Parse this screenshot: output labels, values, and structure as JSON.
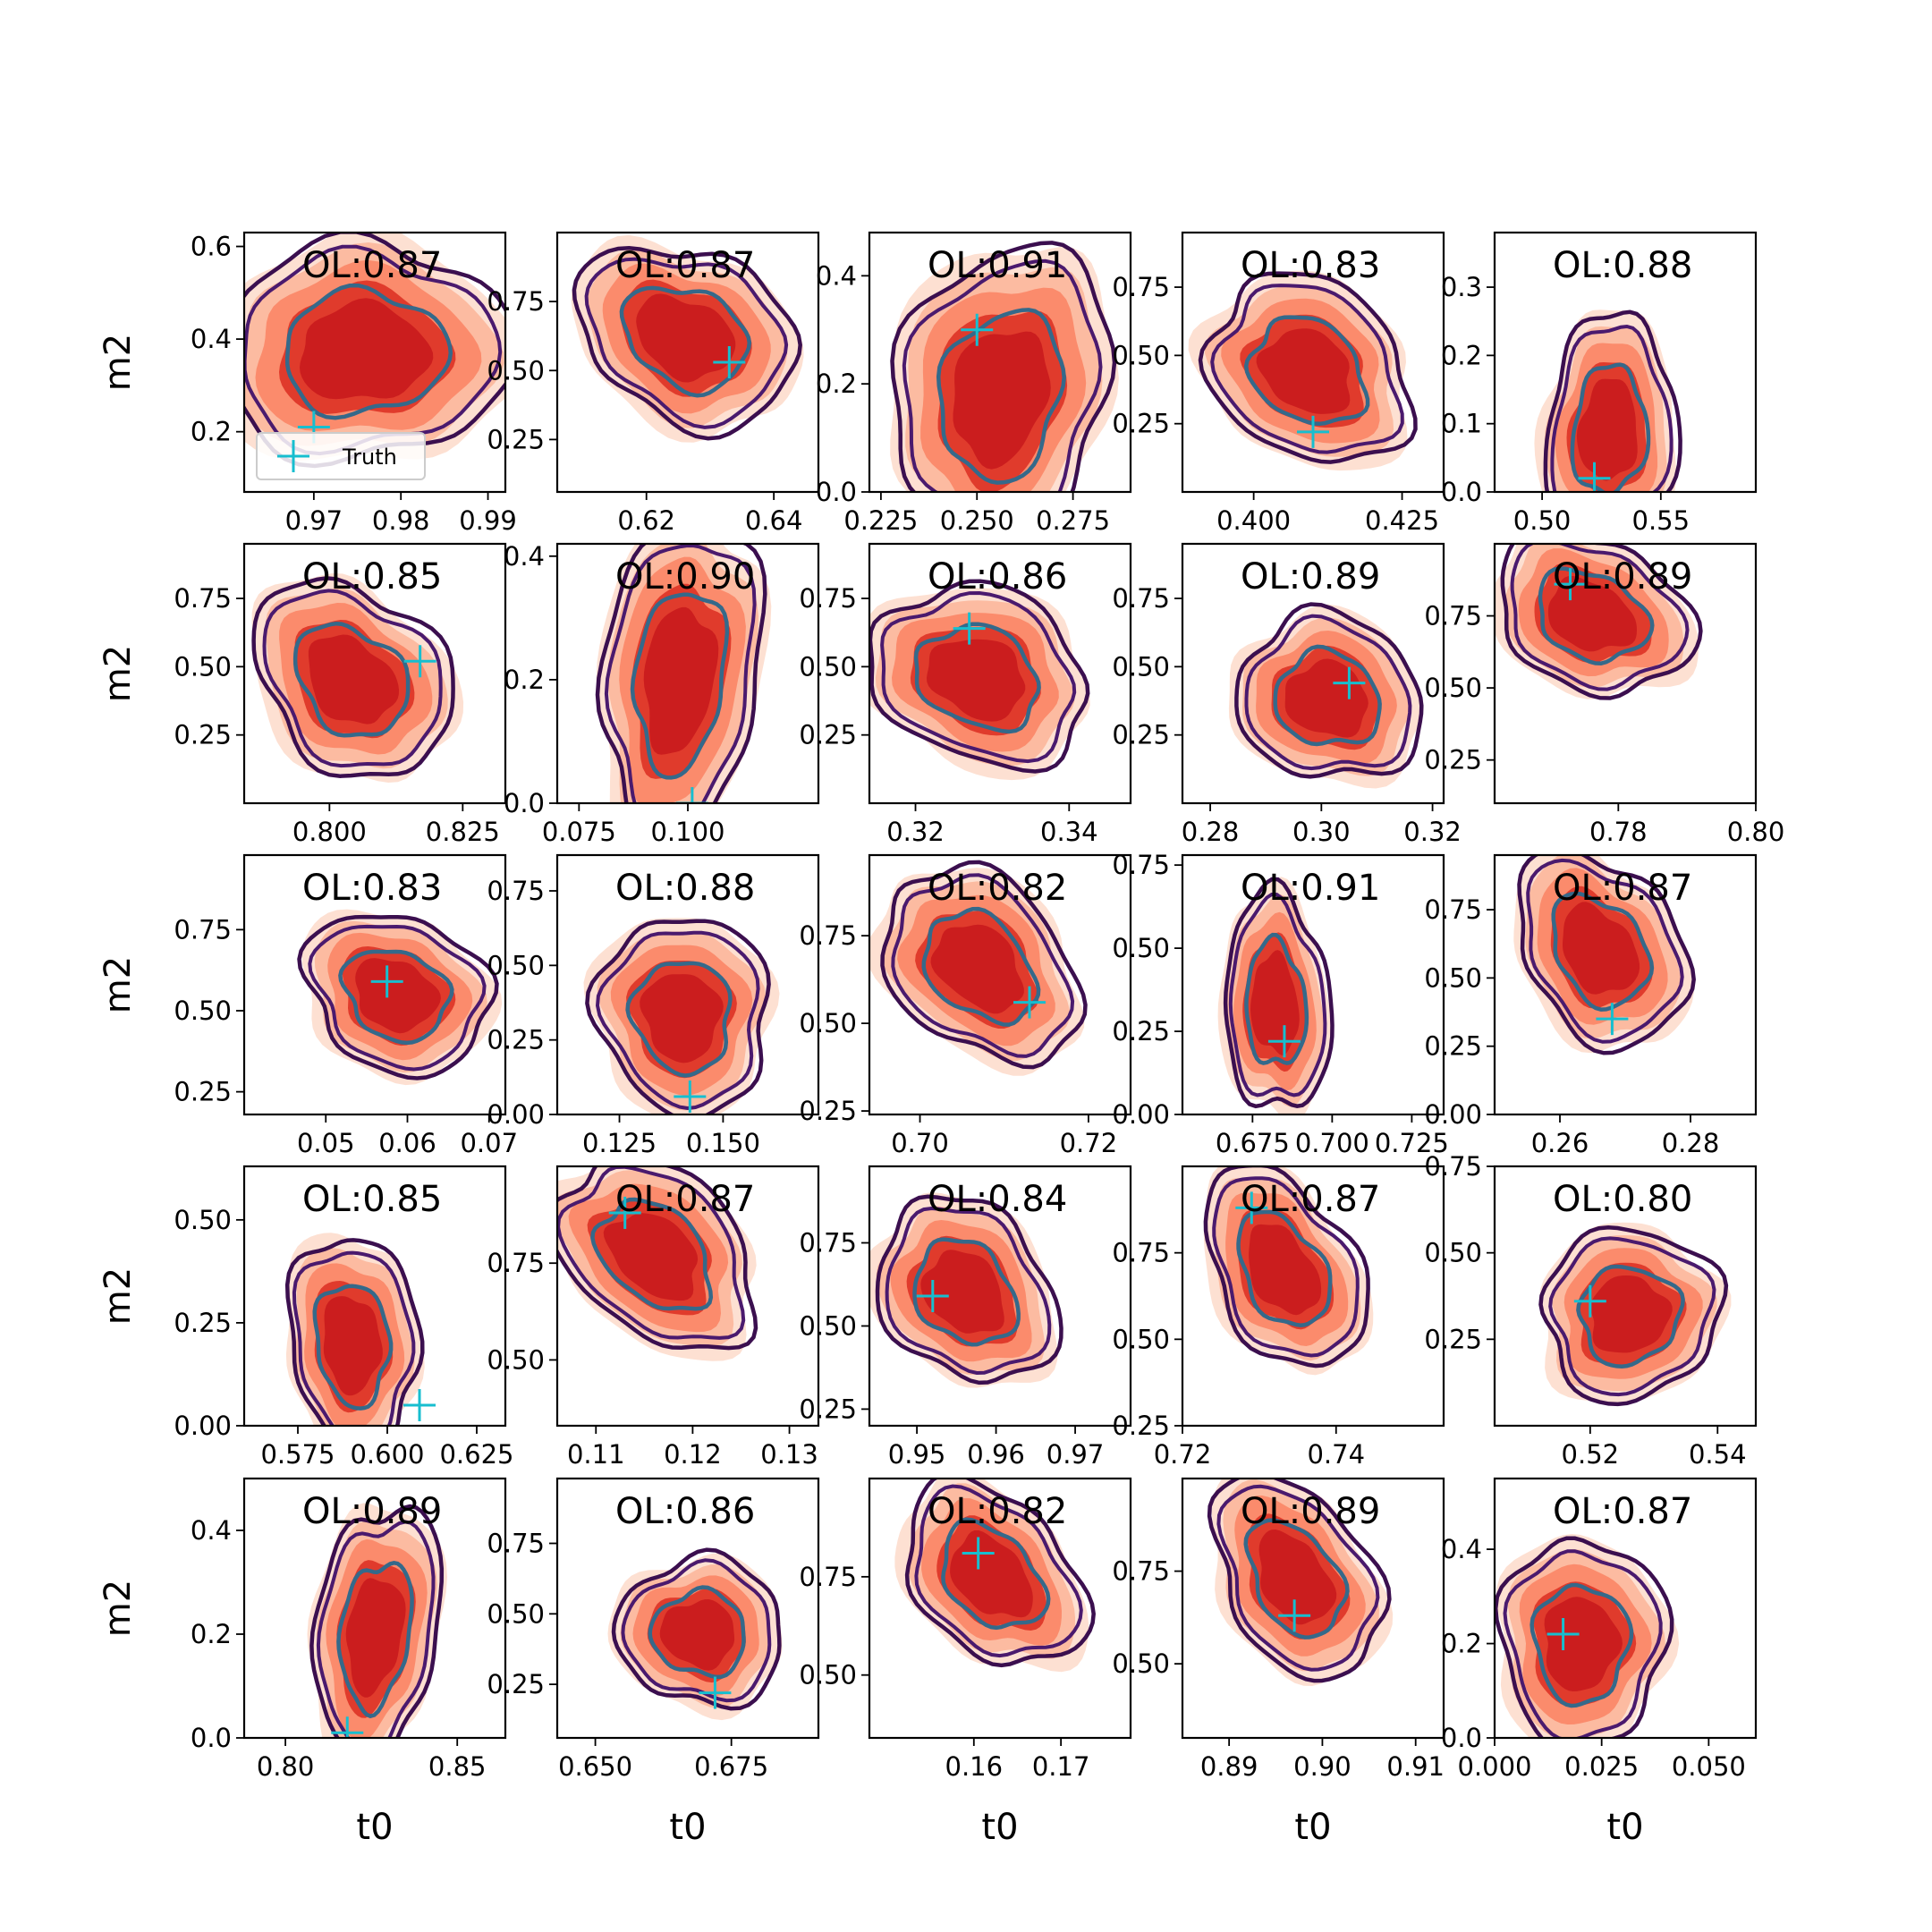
{
  "chart_data": {
    "type": "contour-grid",
    "layout": {
      "rows": 5,
      "cols": 5
    },
    "legend": {
      "label": "Truth",
      "marker": "+",
      "location": "lower left",
      "panel": 0
    },
    "colors": {
      "fill_levels": [
        "#fde0d2",
        "#fcbba1",
        "#fb8b6c",
        "#e03b2c",
        "#cb1d1e"
      ],
      "outer_line": "#3b0f4f",
      "mid_line": "#4a1a6e",
      "inner_line": "#35698a",
      "truth": "#17becf",
      "frame": "#000000"
    },
    "panels": [
      {
        "ol": "OL:0.87",
        "ylabel": "m2",
        "xlabel": "",
        "xlim": [
          0.962,
          0.992
        ],
        "ylim": [
          0.07,
          0.63
        ],
        "xticks": [
          "0.97",
          "0.98",
          "0.99"
        ],
        "xtick_vals": [
          0.97,
          0.98,
          0.99
        ],
        "yticks": [
          "0.2",
          "0.4",
          "0.6"
        ],
        "ytick_vals": [
          0.2,
          0.4,
          0.6
        ],
        "center": [
          0.9757,
          0.37
        ],
        "spread": [
          0.012,
          0.17
        ],
        "tilt": -0.1,
        "truth": [
          0.97,
          0.21
        ]
      },
      {
        "ol": "OL:0.87",
        "ylabel": "",
        "xlabel": "",
        "xlim": [
          0.606,
          0.647
        ],
        "ylim": [
          0.06,
          1.0
        ],
        "xticks": [
          "0.62",
          "0.64"
        ],
        "xtick_vals": [
          0.62,
          0.64
        ],
        "yticks": [
          "0.25",
          "0.50",
          "0.75"
        ],
        "ytick_vals": [
          0.25,
          0.5,
          0.75
        ],
        "center": [
          0.626,
          0.62
        ],
        "spread": [
          0.012,
          0.24
        ],
        "tilt": 0.7,
        "truth": [
          0.633,
          0.53
        ]
      },
      {
        "ol": "OL:0.91",
        "ylabel": "",
        "xlabel": "",
        "xlim": [
          0.222,
          0.29
        ],
        "ylim": [
          0.0,
          0.48
        ],
        "xticks": [
          "0.225",
          "0.250",
          "0.275"
        ],
        "xtick_vals": [
          0.225,
          0.25,
          0.275
        ],
        "yticks": [
          "0.0",
          "0.2",
          "0.4"
        ],
        "ytick_vals": [
          0.0,
          0.2,
          0.4
        ],
        "center": [
          0.256,
          0.18
        ],
        "spread": [
          0.02,
          0.2
        ],
        "tilt": -0.25,
        "truth": [
          0.25,
          0.3
        ]
      },
      {
        "ol": "OL:0.83",
        "ylabel": "",
        "xlabel": "",
        "xlim": [
          0.388,
          0.432
        ],
        "ylim": [
          0.0,
          0.95
        ],
        "xticks": [
          "0.400",
          "0.425"
        ],
        "xtick_vals": [
          0.4,
          0.425
        ],
        "yticks": [
          "0.25",
          "0.50",
          "0.75"
        ],
        "ytick_vals": [
          0.25,
          0.5,
          0.75
        ],
        "center": [
          0.409,
          0.44
        ],
        "spread": [
          0.012,
          0.25
        ],
        "tilt": 0.5,
        "truth": [
          0.41,
          0.22
        ]
      },
      {
        "ol": "OL:0.88",
        "ylabel": "",
        "xlabel": "",
        "xlim": [
          0.48,
          0.59
        ],
        "ylim": [
          0.0,
          0.38
        ],
        "xticks": [
          "0.50",
          "0.55"
        ],
        "xtick_vals": [
          0.5,
          0.55
        ],
        "yticks": [
          "0.0",
          "0.1",
          "0.2",
          "0.3"
        ],
        "ytick_vals": [
          0.0,
          0.1,
          0.2,
          0.3
        ],
        "center": [
          0.528,
          0.09
        ],
        "spread": [
          0.02,
          0.12
        ],
        "tilt": -0.1,
        "truth": [
          0.522,
          0.02
        ]
      },
      {
        "ol": "OL:0.85",
        "ylabel": "m2",
        "xlabel": "",
        "xlim": [
          0.784,
          0.833
        ],
        "ylim": [
          0.0,
          0.95
        ],
        "xticks": [
          "0.800",
          "0.825"
        ],
        "xtick_vals": [
          0.8,
          0.825
        ],
        "yticks": [
          "0.25",
          "0.50",
          "0.75"
        ],
        "ytick_vals": [
          0.25,
          0.5,
          0.75
        ],
        "center": [
          0.804,
          0.45
        ],
        "spread": [
          0.013,
          0.26
        ],
        "tilt": 0.6,
        "truth": [
          0.817,
          0.52
        ]
      },
      {
        "ol": "OL:0.90",
        "ylabel": "",
        "xlabel": "",
        "xlim": [
          0.07,
          0.13
        ],
        "ylim": [
          0.0,
          0.42
        ],
        "xticks": [
          "0.075",
          "0.100"
        ],
        "xtick_vals": [
          0.075,
          0.1
        ],
        "yticks": [
          "0.0",
          "0.2",
          "0.4"
        ],
        "ytick_vals": [
          0.0,
          0.2,
          0.4
        ],
        "center": [
          0.098,
          0.2
        ],
        "spread": [
          0.013,
          0.19
        ],
        "tilt": -0.2,
        "truth": [
          0.101,
          0.0
        ]
      },
      {
        "ol": "OL:0.86",
        "ylabel": "",
        "xlabel": "",
        "xlim": [
          0.314,
          0.348
        ],
        "ylim": [
          0.0,
          0.95
        ],
        "xticks": [
          "0.32",
          "0.34"
        ],
        "xtick_vals": [
          0.32,
          0.34
        ],
        "yticks": [
          "0.25",
          "0.50",
          "0.75"
        ],
        "ytick_vals": [
          0.25,
          0.5,
          0.75
        ],
        "center": [
          0.328,
          0.46
        ],
        "spread": [
          0.01,
          0.24
        ],
        "tilt": 0.5,
        "truth": [
          0.327,
          0.64
        ]
      },
      {
        "ol": "OL:0.89",
        "ylabel": "",
        "xlabel": "",
        "xlim": [
          0.275,
          0.322
        ],
        "ylim": [
          0.0,
          0.95
        ],
        "xticks": [
          "0.28",
          "0.30",
          "0.32"
        ],
        "xtick_vals": [
          0.28,
          0.3,
          0.32
        ],
        "yticks": [
          "0.25",
          "0.50",
          "0.75"
        ],
        "ytick_vals": [
          0.25,
          0.5,
          0.75
        ],
        "center": [
          0.301,
          0.38
        ],
        "spread": [
          0.012,
          0.22
        ],
        "tilt": 0.2,
        "truth": [
          0.305,
          0.44
        ]
      },
      {
        "ol": "OL:0.89",
        "ylabel": "",
        "xlabel": "",
        "xlim": [
          0.762,
          0.8
        ],
        "ylim": [
          0.1,
          1.0
        ],
        "xticks": [
          "0.78",
          "0.80"
        ],
        "xtick_vals": [
          0.78,
          0.8
        ],
        "yticks": [
          "0.25",
          "0.50",
          "0.75"
        ],
        "ytick_vals": [
          0.25,
          0.5,
          0.75
        ],
        "center": [
          0.776,
          0.75
        ],
        "spread": [
          0.01,
          0.2
        ],
        "tilt": 0.7,
        "truth": [
          0.773,
          0.86
        ]
      },
      {
        "ol": "OL:0.83",
        "ylabel": "m2",
        "xlabel": "",
        "xlim": [
          0.04,
          0.072
        ],
        "ylim": [
          0.18,
          0.98
        ],
        "xticks": [
          "0.05",
          "0.06",
          "0.07"
        ],
        "xtick_vals": [
          0.05,
          0.06,
          0.07
        ],
        "yticks": [
          "0.25",
          "0.50",
          "0.75"
        ],
        "ytick_vals": [
          0.25,
          0.5,
          0.75
        ],
        "center": [
          0.0585,
          0.55
        ],
        "spread": [
          0.008,
          0.18
        ],
        "tilt": 0.5,
        "truth": [
          0.0575,
          0.59
        ]
      },
      {
        "ol": "OL:0.88",
        "ylabel": "",
        "xlabel": "",
        "xlim": [
          0.11,
          0.173
        ],
        "ylim": [
          0.0,
          0.87
        ],
        "xticks": [
          "0.125",
          "0.150"
        ],
        "xtick_vals": [
          0.125,
          0.15
        ],
        "yticks": [
          "0.00",
          "0.25",
          "0.50",
          "0.75"
        ],
        "ytick_vals": [
          0.0,
          0.25,
          0.5,
          0.75
        ],
        "center": [
          0.14,
          0.33
        ],
        "spread": [
          0.015,
          0.24
        ],
        "tilt": 0.1,
        "truth": [
          0.142,
          0.06
        ]
      },
      {
        "ol": "OL:0.82",
        "ylabel": "",
        "xlabel": "",
        "xlim": [
          0.694,
          0.725
        ],
        "ylim": [
          0.24,
          0.98
        ],
        "xticks": [
          "0.70",
          "0.72"
        ],
        "xtick_vals": [
          0.7,
          0.72
        ],
        "yticks": [
          "0.25",
          "0.50",
          "0.75"
        ],
        "ytick_vals": [
          0.25,
          0.5,
          0.75
        ],
        "center": [
          0.707,
          0.66
        ],
        "spread": [
          0.008,
          0.2
        ],
        "tilt": 0.7,
        "truth": [
          0.713,
          0.56
        ]
      },
      {
        "ol": "OL:0.91",
        "ylabel": "",
        "xlabel": "",
        "xlim": [
          0.653,
          0.735
        ],
        "ylim": [
          0.0,
          0.78
        ],
        "xticks": [
          "0.675",
          "0.700",
          "0.725"
        ],
        "xtick_vals": [
          0.675,
          0.7,
          0.725
        ],
        "yticks": [
          "0.00",
          "0.25",
          "0.50",
          "0.75"
        ],
        "ytick_vals": [
          0.0,
          0.25,
          0.5,
          0.75
        ],
        "center": [
          0.682,
          0.33
        ],
        "spread": [
          0.012,
          0.24
        ],
        "tilt": 0.1,
        "truth": [
          0.685,
          0.22
        ]
      },
      {
        "ol": "OL:0.87",
        "ylabel": "",
        "xlabel": "",
        "xlim": [
          0.25,
          0.29
        ],
        "ylim": [
          0.0,
          0.95
        ],
        "xticks": [
          "0.26",
          "0.28"
        ],
        "xtick_vals": [
          0.26,
          0.28
        ],
        "yticks": [
          "0.00",
          "0.25",
          "0.50",
          "0.75"
        ],
        "ytick_vals": [
          0.0,
          0.25,
          0.5,
          0.75
        ],
        "center": [
          0.266,
          0.6
        ],
        "spread": [
          0.009,
          0.26
        ],
        "tilt": 0.6,
        "truth": [
          0.268,
          0.35
        ]
      },
      {
        "ol": "OL:0.85",
        "ylabel": "m2",
        "xlabel": "",
        "xlim": [
          0.56,
          0.633
        ],
        "ylim": [
          0.0,
          0.63
        ],
        "xticks": [
          "0.575",
          "0.600",
          "0.625"
        ],
        "xtick_vals": [
          0.575,
          0.6,
          0.625
        ],
        "yticks": [
          "0.00",
          "0.25",
          "0.50"
        ],
        "ytick_vals": [
          0.0,
          0.25,
          0.5
        ],
        "center": [
          0.59,
          0.2
        ],
        "spread": [
          0.013,
          0.19
        ],
        "tilt": 0.15,
        "truth": [
          0.609,
          0.05
        ]
      },
      {
        "ol": "OL:0.87",
        "ylabel": "",
        "xlabel": "",
        "xlim": [
          0.106,
          0.133
        ],
        "ylim": [
          0.33,
          1.0
        ],
        "xticks": [
          "0.11",
          "0.12",
          "0.13"
        ],
        "xtick_vals": [
          0.11,
          0.12,
          0.13
        ],
        "yticks": [
          "0.50",
          "0.75"
        ],
        "ytick_vals": [
          0.5,
          0.75
        ],
        "center": [
          0.116,
          0.77
        ],
        "spread": [
          0.007,
          0.18
        ],
        "tilt": 0.8,
        "truth": [
          0.113,
          0.88
        ]
      },
      {
        "ol": "OL:0.84",
        "ylabel": "",
        "xlabel": "",
        "xlim": [
          0.944,
          0.977
        ],
        "ylim": [
          0.2,
          0.98
        ],
        "xticks": [
          "0.95",
          "0.96",
          "0.97"
        ],
        "xtick_vals": [
          0.95,
          0.96,
          0.97
        ],
        "yticks": [
          "0.25",
          "0.50",
          "0.75"
        ],
        "ytick_vals": [
          0.25,
          0.5,
          0.75
        ],
        "center": [
          0.956,
          0.6
        ],
        "spread": [
          0.008,
          0.2
        ],
        "tilt": 0.5,
        "truth": [
          0.952,
          0.59
        ]
      },
      {
        "ol": "OL:0.87",
        "ylabel": "",
        "xlabel": "",
        "xlim": [
          0.72,
          0.754
        ],
        "ylim": [
          0.25,
          1.0
        ],
        "xticks": [
          "0.72",
          "0.74"
        ],
        "xtick_vals": [
          0.72,
          0.74
        ],
        "yticks": [
          "0.25",
          "0.50",
          "0.75"
        ],
        "ytick_vals": [
          0.25,
          0.5,
          0.75
        ],
        "center": [
          0.733,
          0.7
        ],
        "spread": [
          0.007,
          0.21
        ],
        "tilt": 0.7,
        "truth": [
          0.729,
          0.88
        ]
      },
      {
        "ol": "OL:0.80",
        "ylabel": "",
        "xlabel": "",
        "xlim": [
          0.505,
          0.546
        ],
        "ylim": [
          0.0,
          0.75
        ],
        "xticks": [
          "0.52",
          "0.54"
        ],
        "xtick_vals": [
          0.52,
          0.54
        ],
        "yticks": [
          "0.25",
          "0.50",
          "0.75"
        ],
        "ytick_vals": [
          0.25,
          0.5,
          0.75
        ],
        "center": [
          0.526,
          0.32
        ],
        "spread": [
          0.01,
          0.18
        ],
        "tilt": -0.1,
        "truth": [
          0.52,
          0.36
        ]
      },
      {
        "ol": "OL:0.89",
        "ylabel": "m2",
        "xlabel": "t0",
        "xlim": [
          0.788,
          0.864
        ],
        "ylim": [
          0.0,
          0.5
        ],
        "xticks": [
          "0.80",
          "0.85"
        ],
        "xtick_vals": [
          0.8,
          0.85
        ],
        "yticks": [
          "0.0",
          "0.2",
          "0.4"
        ],
        "ytick_vals": [
          0.0,
          0.2,
          0.4
        ],
        "center": [
          0.826,
          0.2
        ],
        "spread": [
          0.013,
          0.18
        ],
        "tilt": -0.25,
        "truth": [
          0.818,
          0.01
        ]
      },
      {
        "ol": "OL:0.86",
        "ylabel": "",
        "xlabel": "t0",
        "xlim": [
          0.643,
          0.691
        ],
        "ylim": [
          0.06,
          0.98
        ],
        "xticks": [
          "0.650",
          "0.675"
        ],
        "xtick_vals": [
          0.65,
          0.675
        ],
        "yticks": [
          "0.25",
          "0.50",
          "0.75"
        ],
        "ytick_vals": [
          0.25,
          0.5,
          0.75
        ],
        "center": [
          0.669,
          0.43
        ],
        "spread": [
          0.011,
          0.19
        ],
        "tilt": 0.1,
        "truth": [
          0.672,
          0.22
        ]
      },
      {
        "ol": "OL:0.82",
        "ylabel": "",
        "xlabel": "t0",
        "xlim": [
          0.148,
          0.178
        ],
        "ylim": [
          0.34,
          1.0
        ],
        "xticks": [
          "0.16",
          "0.17"
        ],
        "xtick_vals": [
          0.16,
          0.17
        ],
        "yticks": [
          "0.50",
          "0.75"
        ],
        "ytick_vals": [
          0.5,
          0.75
        ],
        "center": [
          0.162,
          0.75
        ],
        "spread": [
          0.007,
          0.17
        ],
        "tilt": 0.8,
        "truth": [
          0.1605,
          0.81
        ]
      },
      {
        "ol": "OL:0.89",
        "ylabel": "",
        "xlabel": "t0",
        "xlim": [
          0.885,
          0.913
        ],
        "ylim": [
          0.3,
          1.0
        ],
        "xticks": [
          "0.89",
          "0.90",
          "0.91"
        ],
        "xtick_vals": [
          0.89,
          0.9,
          0.91
        ],
        "yticks": [
          "0.50",
          "0.75"
        ],
        "ytick_vals": [
          0.5,
          0.75
        ],
        "center": [
          0.897,
          0.73
        ],
        "spread": [
          0.006,
          0.2
        ],
        "tilt": 0.7,
        "truth": [
          0.897,
          0.63
        ]
      },
      {
        "ol": "OL:0.87",
        "ylabel": "",
        "xlabel": "t0",
        "xlim": [
          0.0,
          0.061
        ],
        "ylim": [
          0.0,
          0.55
        ],
        "xticks": [
          "0.000",
          "0.025",
          "0.050"
        ],
        "xtick_vals": [
          0.0,
          0.025,
          0.05
        ],
        "yticks": [
          "0.0",
          "0.2",
          "0.4"
        ],
        "ytick_vals": [
          0.0,
          0.2,
          0.4
        ],
        "center": [
          0.02,
          0.2
        ],
        "spread": [
          0.014,
          0.16
        ],
        "tilt": 0.0,
        "truth": [
          0.016,
          0.22
        ]
      }
    ]
  }
}
